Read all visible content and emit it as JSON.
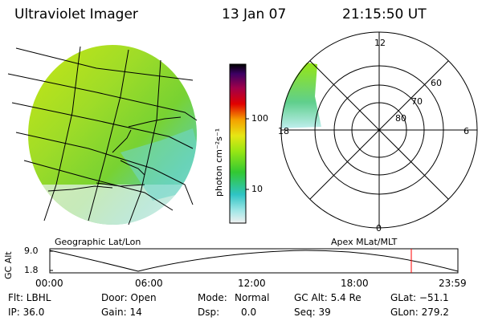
{
  "header": {
    "instrument": "Ultraviolet Imager",
    "date": "13 Jan 07",
    "time": "21:15:50 UT"
  },
  "colorbar": {
    "unit_label": "photon cm⁻²s⁻¹",
    "ticks": [
      "100",
      "10"
    ],
    "scale": "log",
    "colors": [
      "#f0f0f0",
      "#9fe6e6",
      "#2fc4c4",
      "#32c832",
      "#96e614",
      "#e6e614",
      "#f5a000",
      "#e10000",
      "#a0004a",
      "#3c0064",
      "#000000"
    ]
  },
  "polar_plot": {
    "title": "Apex MLat/MLT",
    "mlt_labels": [
      "12",
      "6",
      "0",
      "18"
    ],
    "lat_labels": [
      "60",
      "70",
      "80"
    ]
  },
  "geo_plot": {
    "title": "Geographic Lat/Lon"
  },
  "timeline": {
    "y_axis_label": "GC Alt",
    "y_ticks": [
      "9.0",
      "1.8"
    ],
    "x_ticks": [
      "00:00",
      "06:00",
      "12:00",
      "18:00",
      "23:59"
    ],
    "current_marker_hours": 21.26,
    "marker_color": "#ff0000"
  },
  "status": {
    "filter": "Flt: LBHL",
    "ip": "IP: 36.0",
    "door": "Door: Open",
    "gain": "Gain: 14",
    "mode_label": "Mode:",
    "mode_value": "Normal",
    "dsp_label": "Dsp:",
    "dsp_value": "0.0",
    "gc_alt": "GC Alt: 5.4 Re",
    "seq": "Seq: 39",
    "glat": "GLat: −51.1",
    "glon": "GLon: 279.2"
  }
}
